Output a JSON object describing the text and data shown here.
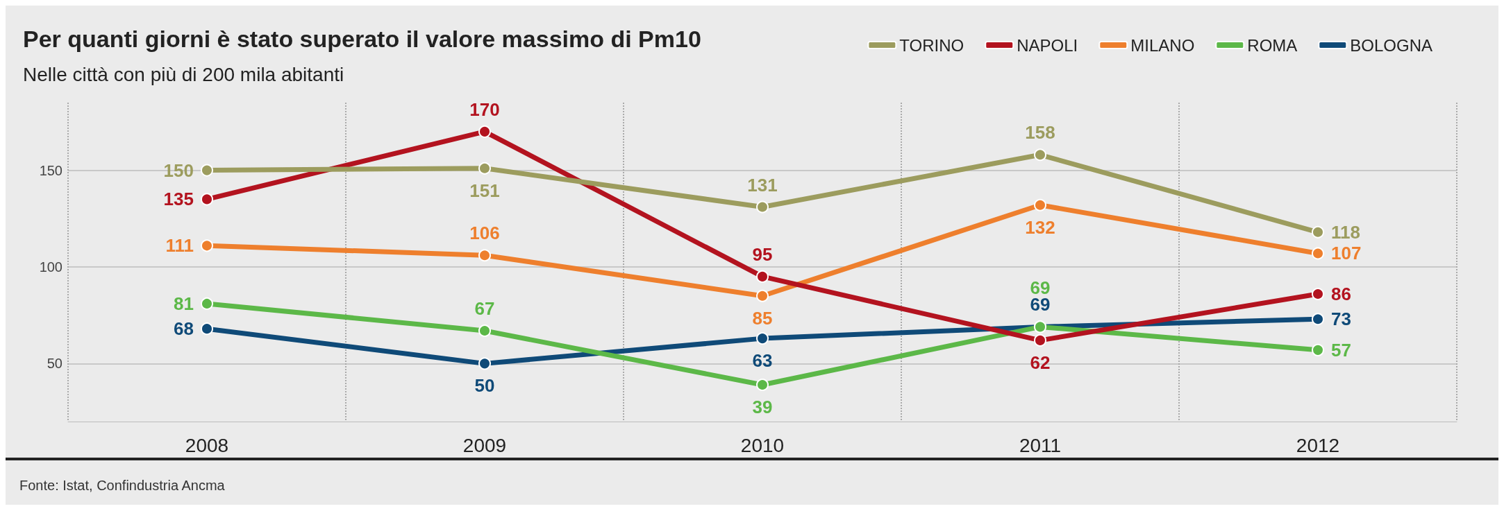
{
  "chart_data": {
    "type": "line",
    "title": "Per quanti giorni è stato superato il valore massimo di Pm10",
    "subtitle": "Nelle città con più di 200 mila abitanti",
    "categories": [
      "2008",
      "2009",
      "2010",
      "2011",
      "2012"
    ],
    "series": [
      {
        "name": "TORINO",
        "color": "#9c9c5e",
        "values": [
          150,
          151,
          131,
          158,
          118
        ]
      },
      {
        "name": "NAPOLI",
        "color": "#b3131f",
        "values": [
          135,
          170,
          95,
          62,
          86
        ]
      },
      {
        "name": "MILANO",
        "color": "#ee7f2d",
        "values": [
          111,
          106,
          85,
          132,
          107
        ]
      },
      {
        "name": "ROMA",
        "color": "#5cb848",
        "values": [
          81,
          67,
          39,
          69,
          57
        ]
      },
      {
        "name": "BOLOGNA",
        "color": "#0f4a78",
        "values": [
          68,
          50,
          63,
          69,
          73
        ]
      }
    ],
    "ylim": [
      20,
      185
    ],
    "yticks": [
      50,
      100,
      150
    ],
    "grid": true,
    "legend": "top right",
    "marker": "circle",
    "line_style": "solid",
    "data_labels": true,
    "annotations": [
      "Fonte: Istat, Confindustria Ancma"
    ]
  }
}
